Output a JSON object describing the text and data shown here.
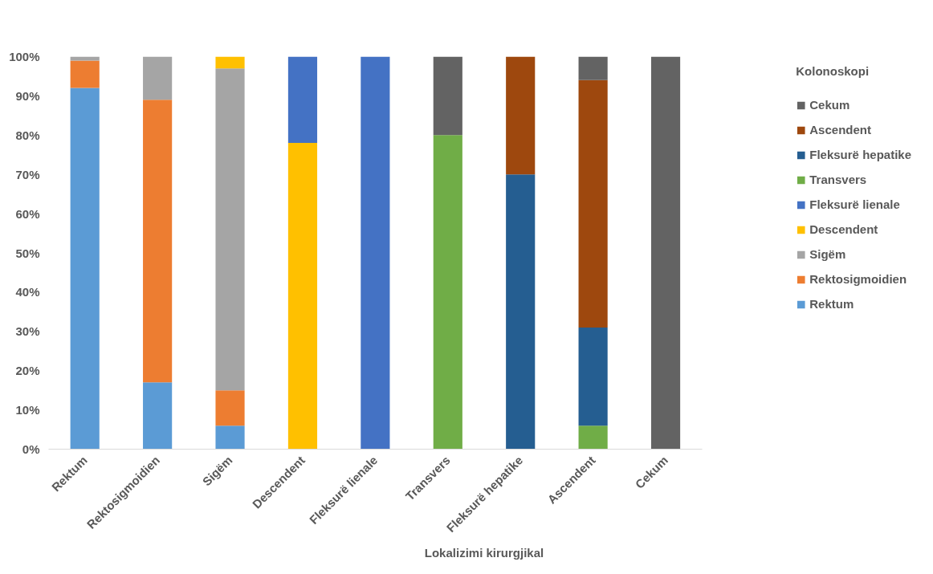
{
  "chart_data": {
    "type": "bar",
    "stacked": true,
    "xlabel": "Lokalizimi kirurgjikal",
    "legend_title": "Kolonoskopi",
    "legend": "right",
    "grid": false,
    "categories": [
      "Rektum",
      "Rektosigmoidien",
      "Sigëm",
      "Descendent",
      "Fleksurë lienale",
      "Transvers",
      "Fleksurë hepatike",
      "Ascendent",
      "Cekum"
    ],
    "ylim": [
      0,
      100
    ],
    "yticks": [
      {
        "value": 0,
        "label": "0%"
      },
      {
        "value": 10,
        "label": "10%"
      },
      {
        "value": 20,
        "label": "20%"
      },
      {
        "value": 30,
        "label": "30%"
      },
      {
        "value": 40,
        "label": "40%"
      },
      {
        "value": 50,
        "label": "50%"
      },
      {
        "value": 60,
        "label": "60%"
      },
      {
        "value": 70,
        "label": "70%"
      },
      {
        "value": 80,
        "label": "80%"
      },
      {
        "value": 90,
        "label": "90%"
      },
      {
        "value": 100,
        "label": "100%"
      }
    ],
    "series": [
      {
        "name": "Rektum",
        "color": "#5b9bd5",
        "values": [
          92,
          17,
          6,
          null,
          null,
          null,
          null,
          null,
          null
        ]
      },
      {
        "name": "Rektosigmoidien",
        "color": "#ed7d31",
        "values": [
          7,
          72,
          9,
          null,
          null,
          null,
          null,
          null,
          null
        ]
      },
      {
        "name": "Sigëm",
        "color": "#a5a5a5",
        "values": [
          1,
          11,
          82,
          null,
          null,
          null,
          null,
          null,
          null
        ]
      },
      {
        "name": "Descendent",
        "color": "#ffc000",
        "values": [
          null,
          null,
          3,
          78,
          null,
          null,
          null,
          null,
          null
        ]
      },
      {
        "name": "Fleksurë lienale",
        "color": "#4472c4",
        "values": [
          null,
          null,
          null,
          22,
          100,
          null,
          null,
          null,
          null
        ]
      },
      {
        "name": "Transvers",
        "color": "#70ad47",
        "values": [
          null,
          null,
          null,
          null,
          null,
          80,
          null,
          6,
          null
        ]
      },
      {
        "name": "Fleksurë hepatike",
        "color": "#255e91",
        "values": [
          null,
          null,
          null,
          null,
          null,
          null,
          70,
          25,
          null
        ]
      },
      {
        "name": "Ascendent",
        "color": "#9e480e",
        "values": [
          null,
          null,
          null,
          null,
          null,
          null,
          30,
          63,
          null
        ]
      },
      {
        "name": "Cekum",
        "color": "#636363",
        "values": [
          null,
          null,
          null,
          null,
          null,
          20,
          null,
          6,
          100
        ]
      }
    ]
  }
}
